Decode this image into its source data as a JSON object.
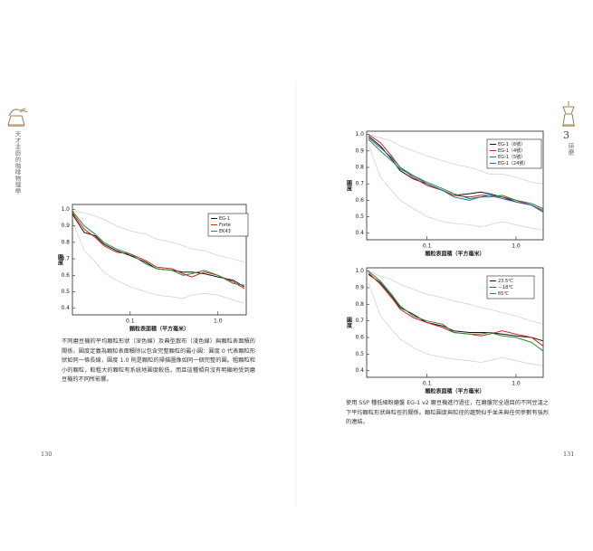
{
  "left_page": {
    "running_title": "天才主廚的咖啡物理學",
    "page_number": 130,
    "caption": "不同磨豆機的平均顆粒形狀（深色線）及典型散布（淺色線）與顆粒表面積的關係。圓度定義為顆粒表面積除以包含完整顆粒的最小圓：圓度 0 代表顆粒形狀如同一條長線，圓度 1.0 則是顆粒的掃描圖像如同一個完整的圓。粗顆粒和小的顆粒，較粗大的顆粒有系統地圓度較低，而且這種傾向沒有明顯地受到磨豆機的不同所影響。"
  },
  "right_page": {
    "chapter_number": 3,
    "chapter_title": "研磨",
    "page_number": 131,
    "caption": "使用 SSP 種低細粉磨盤 EG-1 v2 磨豆機進行過往，在磨盤完全過目的不同豆溫之下平均顆粒形狀與粒徑的關係。顆粒圓度與粒徑的趨勢似乎並未與任何參數有強烈的連結。"
  },
  "chart_data": [
    {
      "type": "line",
      "xlabel": "顆粒表面積（平方毫米）",
      "ylabel": "圓度",
      "xscale": "log",
      "xlim": [
        0.022,
        2.1
      ],
      "ylim": [
        0.36,
        1.03
      ],
      "xticks": [
        0.1,
        {
          "value": 1,
          "label": "1.0"
        }
      ],
      "yticks": [
        0.4,
        0.5,
        0.6,
        0.7,
        0.8,
        0.9,
        {
          "value": 1,
          "label": "1.0"
        }
      ],
      "x": [
        0.022,
        0.03,
        0.04,
        0.05,
        0.07,
        0.1,
        0.15,
        0.2,
        0.3,
        0.4,
        0.5,
        0.7,
        1.0,
        1.5,
        2.0
      ],
      "series": [
        {
          "color": "#d4d4d4",
          "values": [
            0.99,
            0.98,
            0.96,
            0.94,
            0.9,
            0.87,
            0.85,
            0.82,
            0.8,
            0.78,
            0.76,
            0.75,
            0.72,
            0.7,
            0.68
          ]
        },
        {
          "color": "#d4d4d4",
          "values": [
            0.93,
            0.75,
            0.68,
            0.62,
            0.57,
            0.53,
            0.5,
            0.48,
            0.47,
            0.46,
            0.48,
            0.49,
            0.48,
            0.45,
            0.43
          ]
        },
        {
          "name": "EG-1",
          "color": "#111111",
          "values": [
            0.97,
            0.86,
            0.84,
            0.79,
            0.75,
            0.72,
            0.68,
            0.64,
            0.63,
            0.62,
            0.62,
            0.61,
            0.59,
            0.57,
            0.53
          ]
        },
        {
          "name": "Forte",
          "color": "#d42020",
          "values": [
            0.98,
            0.88,
            0.83,
            0.78,
            0.74,
            0.73,
            0.69,
            0.65,
            0.64,
            0.61,
            0.59,
            0.62,
            0.6,
            0.56,
            0.52
          ]
        },
        {
          "name": "EK43",
          "color": "#2a8a3a",
          "values": [
            0.99,
            0.9,
            0.85,
            0.8,
            0.76,
            0.73,
            0.67,
            0.64,
            0.63,
            0.6,
            0.61,
            0.63,
            0.6,
            0.55,
            0.54
          ]
        }
      ]
    },
    {
      "type": "line",
      "xlabel": "顆粒表面積（平方毫米）",
      "ylabel": "圓度",
      "xscale": "log",
      "xlim": [
        0.021,
        2.02
      ],
      "ylim": [
        0.36,
        1.02
      ],
      "xticks": [
        0.1,
        {
          "value": 1,
          "label": "1.0"
        }
      ],
      "yticks": [
        0.4,
        0.5,
        0.6,
        0.7,
        0.8,
        0.9,
        {
          "value": 1,
          "label": "1.0"
        }
      ],
      "x": [
        0.022,
        0.03,
        0.04,
        0.05,
        0.07,
        0.1,
        0.15,
        0.2,
        0.3,
        0.4,
        0.5,
        0.7,
        1.0,
        1.5,
        2.0
      ],
      "series": [
        {
          "color": "#d4d4d4",
          "values": [
            1,
            0.98,
            0.96,
            0.93,
            0.9,
            0.87,
            0.84,
            0.82,
            0.8,
            0.78,
            0.76,
            0.76,
            0.74,
            0.71,
            0.7
          ]
        },
        {
          "color": "#d4d4d4",
          "values": [
            0.94,
            0.74,
            0.66,
            0.6,
            0.55,
            0.5,
            0.47,
            0.46,
            0.45,
            0.44,
            0.45,
            0.47,
            0.45,
            0.43,
            0.42
          ]
        },
        {
          "name": "EG-1（6號）",
          "color": "#111111",
          "values": [
            0.99,
            0.93,
            0.85,
            0.78,
            0.73,
            0.7,
            0.66,
            0.63,
            0.64,
            0.65,
            0.64,
            0.62,
            0.59,
            0.57,
            0.53
          ]
        },
        {
          "name": "EG-1（4號）",
          "color": "#d42020",
          "values": [
            1,
            0.95,
            0.87,
            0.8,
            0.74,
            0.69,
            0.66,
            0.63,
            0.62,
            0.63,
            0.63,
            0.62,
            0.6,
            0.57,
            0.54
          ]
        },
        {
          "name": "EG-1（5號）",
          "color": "#2a8a3a",
          "values": [
            0.97,
            0.9,
            0.84,
            0.79,
            0.75,
            0.71,
            0.67,
            0.64,
            0.61,
            0.62,
            0.62,
            0.63,
            0.6,
            0.58,
            0.55
          ]
        },
        {
          "name": "EG-1（24號）",
          "color": "#1f6fb5",
          "values": [
            0.98,
            0.92,
            0.86,
            0.8,
            0.75,
            0.7,
            0.66,
            0.62,
            0.6,
            0.62,
            0.63,
            0.61,
            0.59,
            0.57,
            0.53
          ]
        }
      ]
    },
    {
      "type": "line",
      "xlabel": "顆粒表面積（平方毫米）",
      "ylabel": "圓度",
      "xscale": "log",
      "xlim": [
        0.021,
        2.02
      ],
      "ylim": [
        0.36,
        1.02
      ],
      "xticks": [
        0.1,
        {
          "value": 1,
          "label": "1.0"
        }
      ],
      "yticks": [
        0.4,
        0.5,
        0.6,
        0.7,
        0.8,
        0.9,
        {
          "value": 1,
          "label": "1.0"
        }
      ],
      "x": [
        0.022,
        0.03,
        0.04,
        0.05,
        0.07,
        0.1,
        0.15,
        0.2,
        0.3,
        0.4,
        0.5,
        0.7,
        1.0,
        1.5,
        2.0
      ],
      "series": [
        {
          "color": "#d4d4d4",
          "values": [
            1,
            0.97,
            0.95,
            0.92,
            0.89,
            0.86,
            0.84,
            0.82,
            0.8,
            0.78,
            0.77,
            0.75,
            0.73,
            0.7,
            0.68
          ]
        },
        {
          "color": "#d4d4d4",
          "values": [
            0.93,
            0.73,
            0.65,
            0.59,
            0.54,
            0.5,
            0.48,
            0.47,
            0.46,
            0.45,
            0.46,
            0.48,
            0.46,
            0.44,
            0.43
          ]
        },
        {
          "name": "23.5℃",
          "color": "#111111",
          "values": [
            0.98,
            0.93,
            0.85,
            0.78,
            0.74,
            0.69,
            0.67,
            0.64,
            0.63,
            0.63,
            0.63,
            0.62,
            0.61,
            0.6,
            0.58
          ]
        },
        {
          "name": "－18℃",
          "color": "#d42020",
          "values": [
            0.99,
            0.92,
            0.84,
            0.77,
            0.72,
            0.69,
            0.66,
            0.63,
            0.62,
            0.61,
            0.62,
            0.64,
            0.62,
            0.6,
            0.55
          ]
        },
        {
          "name": "65℃",
          "color": "#2a8a3a",
          "values": [
            1,
            0.94,
            0.86,
            0.79,
            0.73,
            0.7,
            0.68,
            0.63,
            0.62,
            0.62,
            0.63,
            0.61,
            0.6,
            0.57,
            0.52
          ]
        }
      ]
    }
  ]
}
